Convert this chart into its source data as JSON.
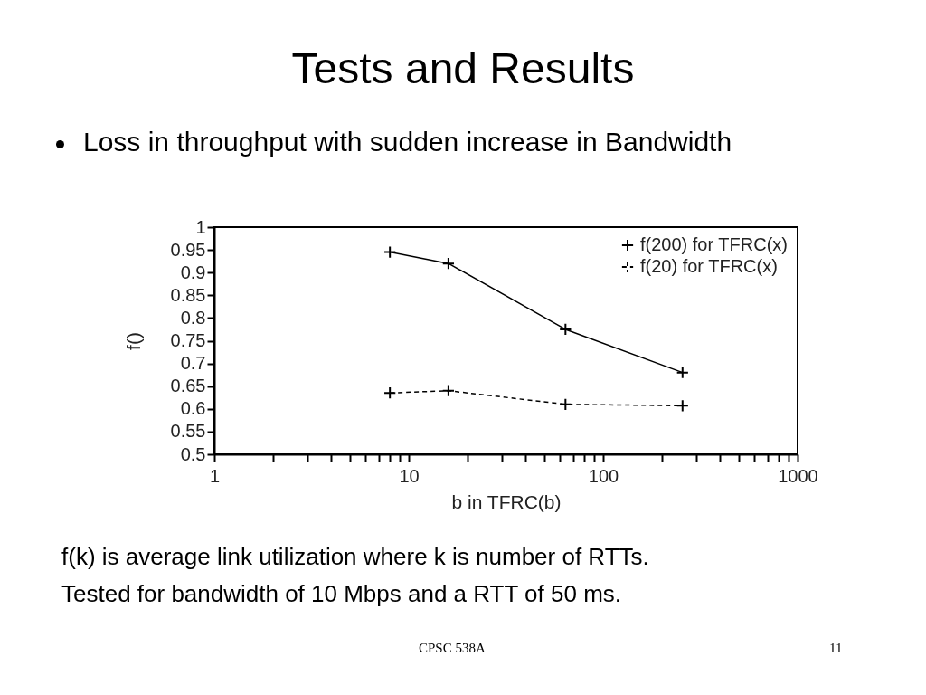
{
  "chart_data": {
    "type": "line",
    "title": "Tests and Results",
    "subtitle": "Loss in throughput with sudden increase in Bandwidth",
    "xlabel": "b in TFRC(b)",
    "ylabel": "f()",
    "log": "x",
    "grid": false,
    "legend": "top right",
    "marker": "cross",
    "xlim": [
      1,
      1000
    ],
    "xticks": [
      1,
      {
        "value": 2,
        "label": null
      },
      {
        "value": 3,
        "label": null
      },
      {
        "value": 4,
        "label": null
      },
      {
        "value": 5,
        "label": null
      },
      {
        "value": 6,
        "label": null
      },
      {
        "value": 7,
        "label": null
      },
      {
        "value": 8,
        "label": null
      },
      {
        "value": 9,
        "label": null
      },
      10,
      {
        "value": 20,
        "label": null
      },
      {
        "value": 30,
        "label": null
      },
      {
        "value": 40,
        "label": null
      },
      {
        "value": 50,
        "label": null
      },
      {
        "value": 60,
        "label": null
      },
      {
        "value": 70,
        "label": null
      },
      {
        "value": 80,
        "label": null
      },
      {
        "value": 90,
        "label": null
      },
      100,
      {
        "value": 200,
        "label": null
      },
      {
        "value": 300,
        "label": null
      },
      {
        "value": 400,
        "label": null
      },
      {
        "value": 500,
        "label": null
      },
      {
        "value": 600,
        "label": null
      },
      {
        "value": 700,
        "label": null
      },
      {
        "value": 800,
        "label": null
      },
      {
        "value": 900,
        "label": null
      },
      1000
    ],
    "ylim": [
      0.5,
      1
    ],
    "yticks": [
      0.5,
      0.55,
      0.6,
      0.65,
      0.7,
      0.75,
      0.8,
      0.85,
      0.9,
      0.95,
      1
    ],
    "x": [
      8,
      16,
      64,
      256
    ],
    "series": [
      {
        "name": "f(200) for TFRC(x)",
        "color": "#000000",
        "line_style": "solid",
        "values": [
          0.945,
          0.92,
          0.775,
          0.68
        ]
      },
      {
        "name": "f(20) for TFRC(x)",
        "color": "#000000",
        "line_style": "dashed",
        "values": [
          0.635,
          0.64,
          0.61,
          0.607
        ]
      }
    ],
    "annotations": [
      "f(k) is average link utilization where k is number of RTTs.",
      "Tested for bandwidth of 10 Mbps and a RTT of 50 ms.",
      "CPSC 538A",
      "11"
    ]
  }
}
